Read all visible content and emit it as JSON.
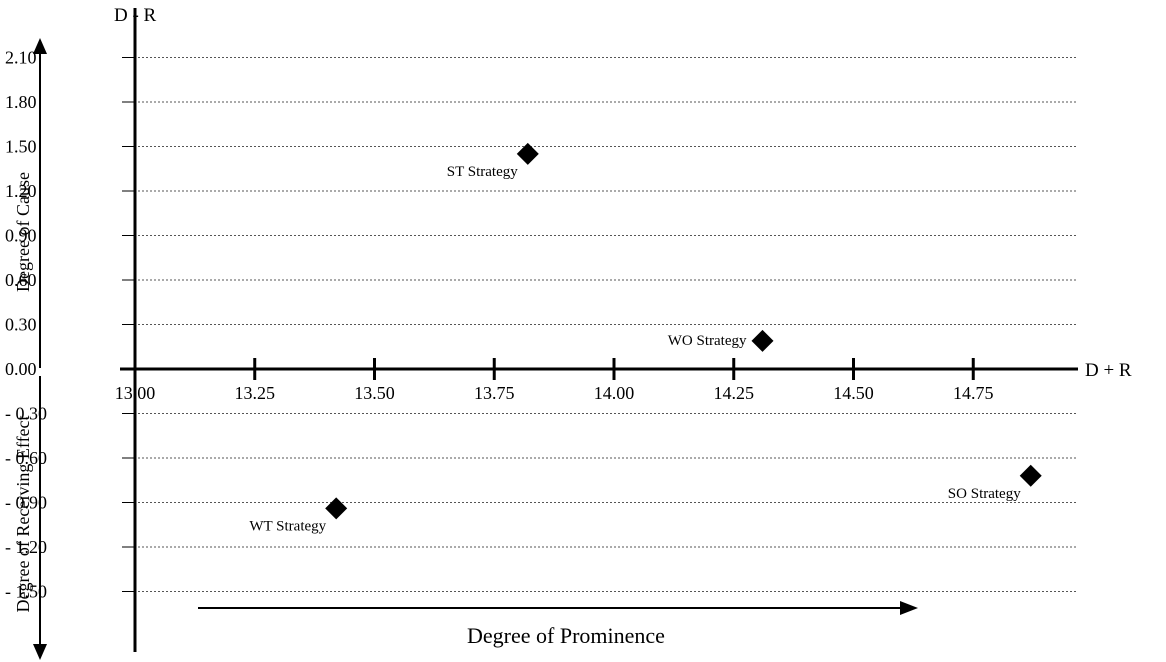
{
  "chart_data": {
    "type": "scatter",
    "title": "",
    "xlabel": "D + R",
    "ylabel": "D - R",
    "x_ticks": [
      "13.00",
      "13.25",
      "13.50",
      "13.75",
      "14.00",
      "14.25",
      "14.50",
      "14.75"
    ],
    "x_tick_values": [
      13.0,
      13.25,
      13.5,
      13.75,
      14.0,
      14.25,
      14.5,
      14.75
    ],
    "y_ticks": [
      "2.10",
      "1.80",
      "1.50",
      "1.20",
      "0.90",
      "0.60",
      "0.30",
      "0.00",
      "- 0.30",
      "- 0.60",
      "- 0.90",
      "- 1.20",
      "- 1.50"
    ],
    "y_tick_values": [
      2.1,
      1.8,
      1.5,
      1.2,
      0.9,
      0.6,
      0.3,
      0.0,
      -0.3,
      -0.6,
      -0.9,
      -1.2,
      -1.5
    ],
    "xlim": [
      13.0,
      15.0
    ],
    "ylim": [
      -1.5,
      2.1
    ],
    "grid": true,
    "points": [
      {
        "label": "ST Strategy",
        "x": 13.82,
        "y": 1.45
      },
      {
        "label": "WO Strategy",
        "x": 14.31,
        "y": 0.19
      },
      {
        "label": "WT Strategy",
        "x": 13.42,
        "y": -0.94
      },
      {
        "label": "SO Strategy",
        "x": 14.87,
        "y": -0.72
      }
    ],
    "annotations": {
      "cause": "Degree of Cause",
      "receiving_effect": "Degree of Receiving Effect",
      "prominence": "Degree of Prominence"
    }
  }
}
